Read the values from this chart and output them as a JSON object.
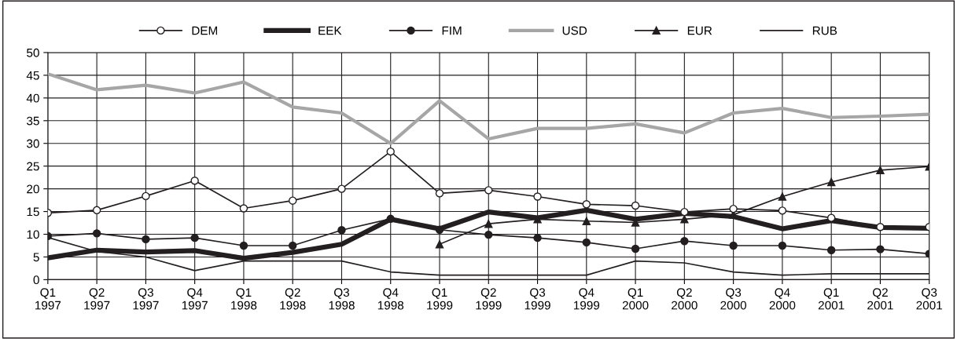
{
  "chart_data": {
    "type": "line",
    "categories": [
      "Q1\n1997",
      "Q2\n1997",
      "Q3\n1997",
      "Q4\n1997",
      "Q1\n1998",
      "Q2\n1998",
      "Q3\n1998",
      "Q4\n1998",
      "Q1\n1999",
      "Q2\n1999",
      "Q3\n1999",
      "Q4\n1999",
      "Q1\n2000",
      "Q2\n2000",
      "Q3\n2000",
      "Q4\n2000",
      "Q1\n2001",
      "Q2\n2001",
      "Q3\n2001"
    ],
    "series": [
      {
        "name": "DEM",
        "color": "#231f20",
        "marker": "circle",
        "values": [
          14.7,
          15.3,
          18.4,
          21.8,
          15.7,
          17.4,
          20,
          28.2,
          19,
          19.7,
          18.3,
          16.6,
          16.3,
          14.9,
          15.6,
          15.2,
          13.6,
          11.6,
          11.6
        ]
      },
      {
        "name": "EEK",
        "color": "#231f20",
        "marker": "none",
        "values": [
          4.8,
          6.5,
          6.1,
          6.4,
          4.7,
          6.0,
          7.8,
          13.3,
          11.2,
          14.9,
          13.6,
          15.3,
          13.3,
          14.6,
          13.9,
          11.2,
          13.0,
          11.5,
          11.3
        ]
      },
      {
        "name": "FIM",
        "color": "#231f20",
        "marker": "circle",
        "values": [
          9.6,
          10.2,
          8.9,
          9.2,
          7.5,
          7.5,
          10.9,
          13.4,
          11.0,
          9.9,
          9.2,
          8.2,
          6.8,
          8.5,
          7.5,
          7.5,
          6.5,
          6.7,
          5.7
        ]
      },
      {
        "name": "USD",
        "color": "#a6a6a6",
        "marker": "none",
        "values": [
          45.3,
          41.8,
          42.8,
          41.1,
          43.5,
          38,
          36.7,
          30,
          39.4,
          31,
          33.3,
          33.3,
          34.3,
          32.3,
          36.7,
          37.7,
          35.7,
          36,
          36.4
        ]
      },
      {
        "name": "EUR",
        "color": "#231f20",
        "marker": "triangle",
        "values": [
          null,
          null,
          null,
          null,
          null,
          null,
          null,
          null,
          7.8,
          12.3,
          13.3,
          12.9,
          12.6,
          13.3,
          14.3,
          18.3,
          21.5,
          24.1,
          24.9
        ]
      },
      {
        "name": "RUB",
        "color": "#231f20",
        "marker": "none",
        "values": [
          9.3,
          6.2,
          5.0,
          2.0,
          4.1,
          4.1,
          4.1,
          1.7,
          1.0,
          1.0,
          1.0,
          1.0,
          4.1,
          3.7,
          1.7,
          1.0,
          1.3,
          1.3,
          1.3
        ]
      }
    ],
    "ylim": [
      0,
      50
    ],
    "yticks": [
      0,
      5,
      10,
      15,
      20,
      25,
      30,
      35,
      40,
      45,
      50
    ],
    "grid": true,
    "legend": "top"
  }
}
